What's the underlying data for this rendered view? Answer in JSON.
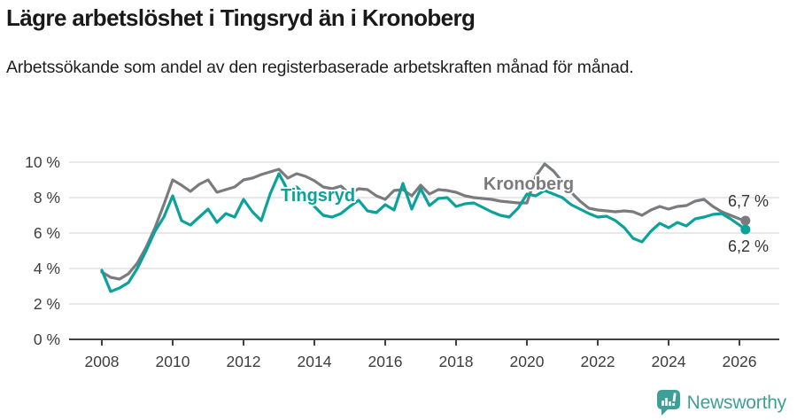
{
  "header": {
    "title": "Lägre arbetslöshet i Tingsryd än i Kronoberg",
    "subtitle": "Arbetssökande som andel av den registerbaserade arbetskraften månad för månad."
  },
  "footer": {
    "brand": "Newsworthy",
    "brand_color": "#3f9e97",
    "logo_icon": "speech-bubble-bar-chart-icon"
  },
  "chart_data": {
    "type": "line",
    "title": "Lägre arbetslöshet i Tingsryd än i Kronoberg",
    "subtitle": "Arbetssökande som andel av den registerbaserade arbetskraften månad för månad.",
    "xlabel": "",
    "ylabel": "",
    "ylim": [
      0,
      10
    ],
    "xlim": [
      2007.08,
      2027.12
    ],
    "grid": "horizontal-only",
    "legend_position": "inline-labels",
    "yticks": [
      0,
      2,
      4,
      6,
      8,
      10
    ],
    "ytick_labels": [
      "0 %",
      "2 %",
      "4 %",
      "6 %",
      "8 %",
      "10 %"
    ],
    "xticks": [
      2008,
      2010,
      2012,
      2014,
      2016,
      2018,
      2020,
      2022,
      2024,
      2026
    ],
    "xtick_labels": [
      "2008",
      "2010",
      "2012",
      "2014",
      "2016",
      "2018",
      "2020",
      "2022",
      "2024",
      "2026"
    ],
    "colors": {
      "tingsryd": "#0aa29a",
      "kronoberg": "#7a7b7e",
      "grid": "#dadada",
      "axis": "#404040",
      "tick_text": "#3d3d3d",
      "end_label_text": "#333333"
    },
    "x": [
      2008.0,
      2008.25,
      2008.5,
      2008.75,
      2009.0,
      2009.25,
      2009.5,
      2009.75,
      2010.0,
      2010.25,
      2010.5,
      2010.75,
      2011.0,
      2011.25,
      2011.5,
      2011.75,
      2012.0,
      2012.25,
      2012.5,
      2012.75,
      2013.0,
      2013.25,
      2013.5,
      2013.75,
      2014.0,
      2014.25,
      2014.5,
      2014.75,
      2015.0,
      2015.25,
      2015.5,
      2015.75,
      2016.0,
      2016.25,
      2016.5,
      2016.75,
      2017.0,
      2017.25,
      2017.5,
      2017.75,
      2018.0,
      2018.25,
      2018.5,
      2018.75,
      2019.0,
      2019.25,
      2019.5,
      2019.75,
      2020.0,
      2020.25,
      2020.5,
      2020.75,
      2021.0,
      2021.25,
      2021.5,
      2021.75,
      2022.0,
      2022.25,
      2022.5,
      2022.75,
      2023.0,
      2023.25,
      2023.5,
      2023.75,
      2024.0,
      2024.25,
      2024.5,
      2024.75,
      2025.0,
      2025.25,
      2025.5,
      2025.75,
      2026.0,
      2026.17
    ],
    "series": [
      {
        "name": "Kronoberg",
        "color": "#7a7b7e",
        "end_label": "6,7 %",
        "end_value": 6.7,
        "end_label_side": "above",
        "values": [
          3.8,
          3.5,
          3.4,
          3.7,
          4.3,
          5.2,
          6.3,
          7.6,
          9.0,
          8.7,
          8.35,
          8.75,
          9.0,
          8.3,
          8.45,
          8.6,
          9.0,
          9.1,
          9.3,
          9.45,
          9.6,
          9.1,
          9.35,
          9.2,
          8.95,
          8.6,
          8.5,
          8.65,
          8.2,
          8.5,
          8.45,
          8.1,
          7.9,
          8.4,
          8.45,
          8.1,
          8.7,
          8.2,
          8.45,
          8.4,
          8.3,
          8.1,
          8.0,
          7.95,
          7.9,
          7.8,
          7.75,
          7.7,
          7.7,
          9.2,
          9.9,
          9.5,
          8.9,
          8.3,
          7.8,
          7.4,
          7.3,
          7.25,
          7.2,
          7.25,
          7.2,
          7.0,
          7.3,
          7.5,
          7.35,
          7.5,
          7.55,
          7.8,
          7.9,
          7.5,
          7.2,
          7.0,
          6.8,
          6.7
        ]
      },
      {
        "name": "Tingsryd",
        "color": "#0aa29a",
        "end_label": "6,2 %",
        "end_value": 6.2,
        "end_label_side": "below",
        "values": [
          3.9,
          2.7,
          2.9,
          3.2,
          4.0,
          5.0,
          6.1,
          6.9,
          8.1,
          6.7,
          6.45,
          6.9,
          7.35,
          6.6,
          7.1,
          6.9,
          7.9,
          7.2,
          6.7,
          8.2,
          9.35,
          8.4,
          8.6,
          8.1,
          7.5,
          7.0,
          6.9,
          7.1,
          7.5,
          7.85,
          7.25,
          7.15,
          7.6,
          7.3,
          8.8,
          7.35,
          8.5,
          7.55,
          7.95,
          8.0,
          7.5,
          7.65,
          7.7,
          7.45,
          7.2,
          7.0,
          6.9,
          7.4,
          8.2,
          8.1,
          8.4,
          8.2,
          8.0,
          7.6,
          7.35,
          7.1,
          6.9,
          6.95,
          6.7,
          6.3,
          5.7,
          5.5,
          6.1,
          6.55,
          6.3,
          6.6,
          6.4,
          6.8,
          6.9,
          7.05,
          7.1,
          6.8,
          6.45,
          6.2
        ]
      }
    ],
    "annotations": [
      {
        "text": "Tingsryd",
        "x": 2014.1,
        "y": 8.15,
        "color": "#0aa29a"
      },
      {
        "text": "Kronoberg",
        "x": 2020.05,
        "y": 8.8,
        "color": "#7a7b7e"
      }
    ]
  }
}
